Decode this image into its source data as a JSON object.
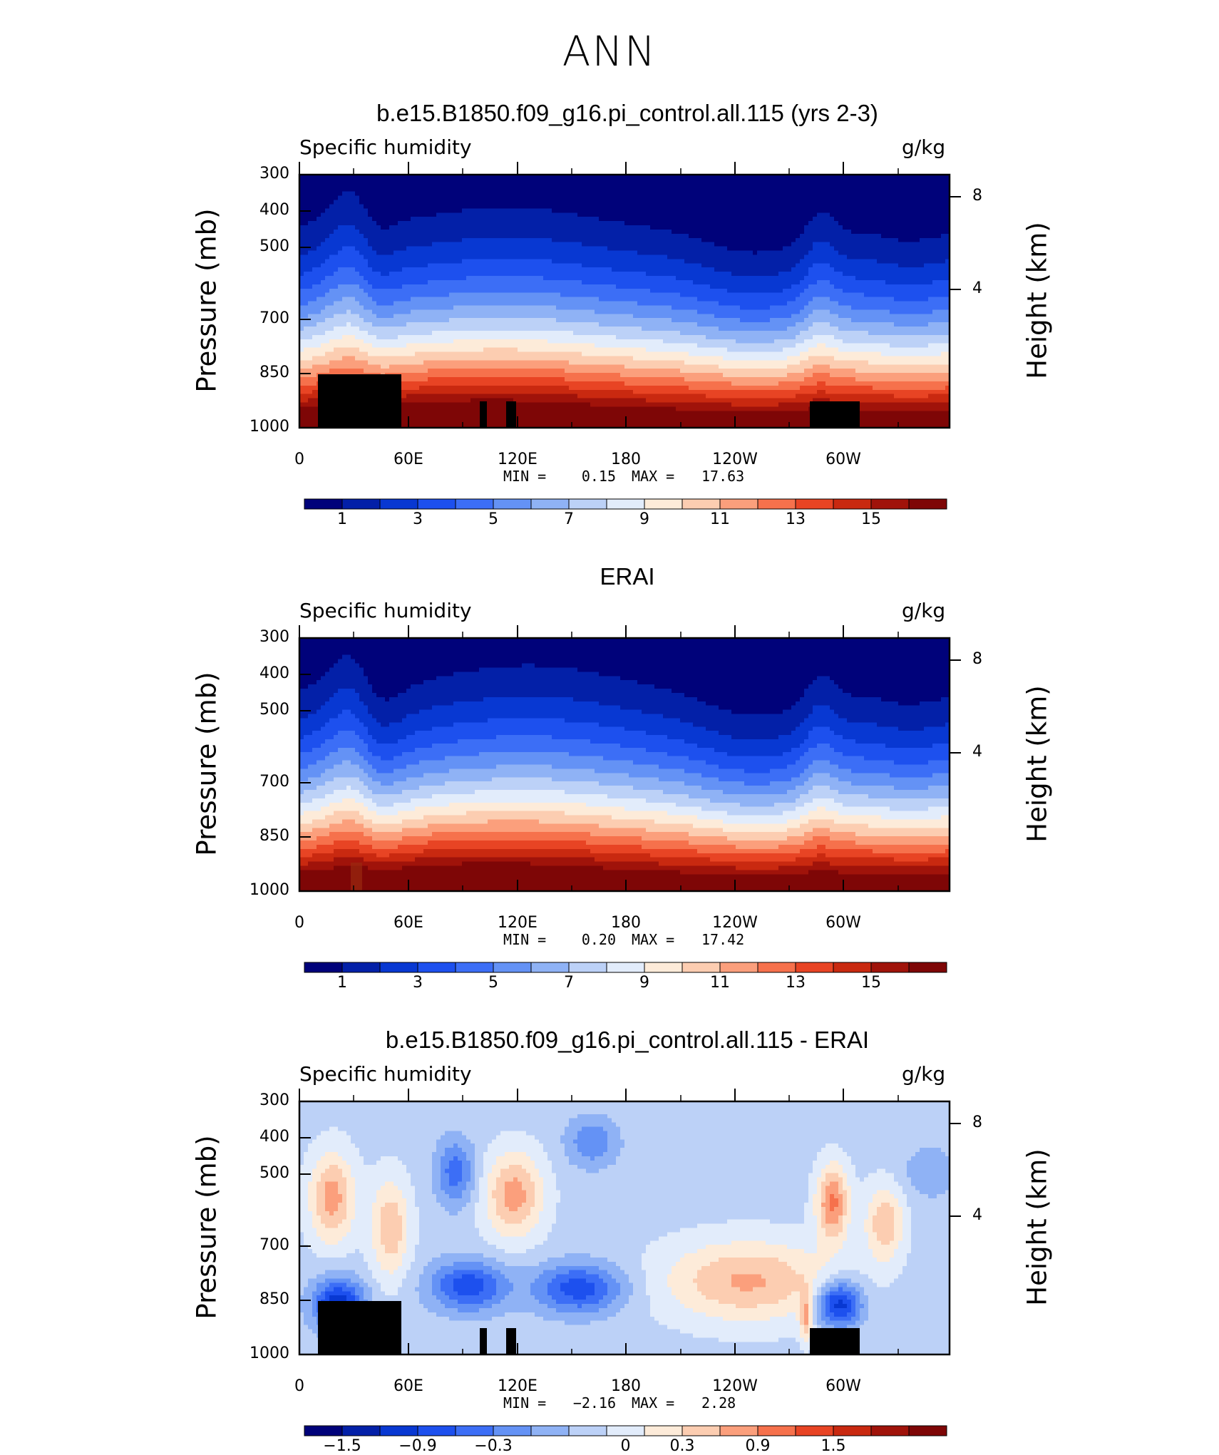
{
  "figure": {
    "title": "ANN"
  },
  "chart_data": [
    {
      "type": "heatmap",
      "title": "b.e15.B1850.f09_g16.pi_control.all.115 (yrs 2-3)",
      "variable": "Specific humidity",
      "units": "g/kg",
      "ylabel": "Pressure (mb)",
      "ylabel_right": "Height (km)",
      "y_ticks": [
        "300",
        "400",
        "500",
        "700",
        "850",
        "1000"
      ],
      "y_ticks_right": [
        "8",
        "4"
      ],
      "x_ticks": [
        "0",
        "60E",
        "120E",
        "180",
        "120W",
        "60W"
      ],
      "min_label": "MIN =",
      "min_value": "0.15",
      "max_label": "MAX =",
      "max_value": "17.63",
      "colorbar_labels": [
        "1",
        "3",
        "5",
        "7",
        "9",
        "11",
        "13",
        "15"
      ],
      "colorbar_range": [
        0,
        16
      ],
      "palette": [
        "#00027a",
        "#0320a8",
        "#0838d2",
        "#1d50ee",
        "#3c6ef6",
        "#6492f5",
        "#8fb2f5",
        "#bcd1f7",
        "#e2ecfb",
        "#fdebd9",
        "#fccdb1",
        "#fb9f7c",
        "#f6714c",
        "#e84424",
        "#c92910",
        "#a0130a",
        "#7e0606"
      ],
      "has_topography": true
    },
    {
      "type": "heatmap",
      "title": "ERAI",
      "variable": "Specific humidity",
      "units": "g/kg",
      "ylabel": "Pressure (mb)",
      "ylabel_right": "Height (km)",
      "y_ticks": [
        "300",
        "400",
        "500",
        "700",
        "850",
        "1000"
      ],
      "y_ticks_right": [
        "8",
        "4"
      ],
      "x_ticks": [
        "0",
        "60E",
        "120E",
        "180",
        "120W",
        "60W"
      ],
      "min_label": "MIN =",
      "min_value": "0.20",
      "max_label": "MAX =",
      "max_value": "17.42",
      "colorbar_labels": [
        "1",
        "3",
        "5",
        "7",
        "9",
        "11",
        "13",
        "15"
      ],
      "colorbar_range": [
        0,
        16
      ],
      "palette": [
        "#00027a",
        "#0320a8",
        "#0838d2",
        "#1d50ee",
        "#3c6ef6",
        "#6492f5",
        "#8fb2f5",
        "#bcd1f7",
        "#e2ecfb",
        "#fdebd9",
        "#fccdb1",
        "#fb9f7c",
        "#f6714c",
        "#e84424",
        "#c92910",
        "#a0130a",
        "#7e0606"
      ],
      "has_topography": false
    },
    {
      "type": "heatmap",
      "title": "b.e15.B1850.f09_g16.pi_control.all.115 - ERAI",
      "variable": "Specific humidity",
      "units": "g/kg",
      "ylabel": "Pressure (mb)",
      "ylabel_right": "Height (km)",
      "y_ticks": [
        "300",
        "400",
        "500",
        "700",
        "850",
        "1000"
      ],
      "y_ticks_right": [
        "8",
        "4"
      ],
      "x_ticks": [
        "0",
        "60E",
        "120E",
        "180",
        "120W",
        "60W"
      ],
      "min_label": "MIN =",
      "min_value": "−2.16",
      "max_label": "MAX =",
      "max_value": "2.28",
      "colorbar_labels": [
        "−1.5",
        "−0.9",
        "−0.3",
        "0",
        "0.3",
        "0.9",
        "1.5"
      ],
      "colorbar_range": [
        -2.4,
        2.4
      ],
      "palette": [
        "#00027a",
        "#0320a8",
        "#0838d2",
        "#1d50ee",
        "#3c6ef6",
        "#6492f5",
        "#8fb2f5",
        "#bcd1f7",
        "#e2ecfb",
        "#fdebd9",
        "#fccdb1",
        "#fb9f7c",
        "#f6714c",
        "#e84424",
        "#c92910",
        "#a0130a",
        "#7e0606"
      ],
      "has_topography": true
    }
  ]
}
